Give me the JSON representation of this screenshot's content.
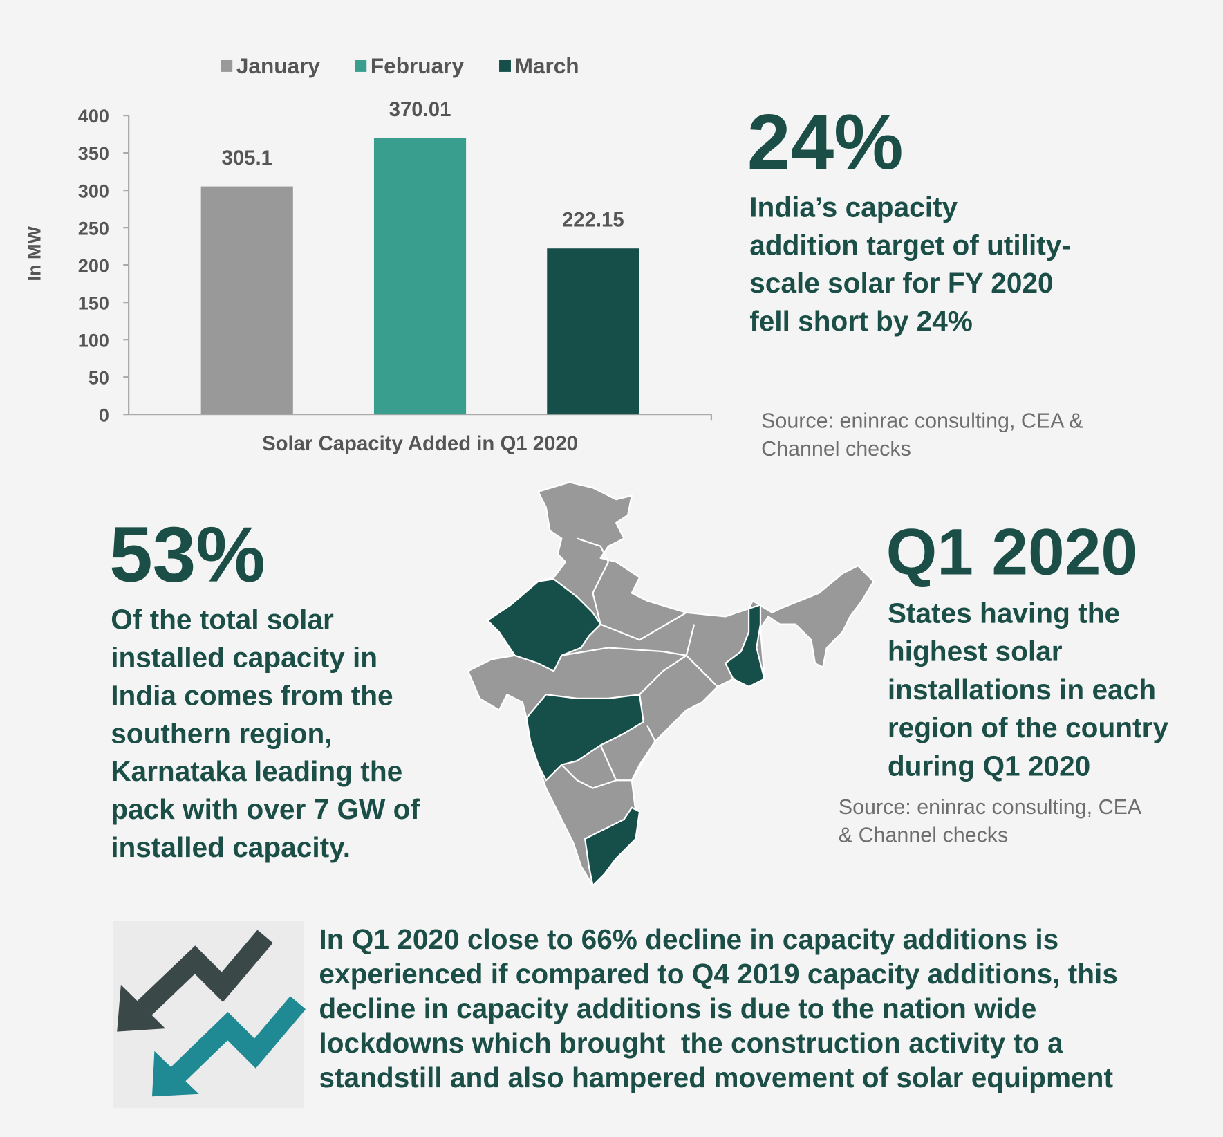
{
  "chart_data": {
    "type": "bar",
    "categories": [
      "Solar Capacity Added in Q1 2020"
    ],
    "ylabel": "In MW",
    "series": [
      {
        "name": "January",
        "color": "#999999",
        "values": [
          305.1
        ]
      },
      {
        "name": "February",
        "color": "#3a9e8f",
        "values": [
          370.01
        ]
      },
      {
        "name": "March",
        "color": "#164f49",
        "values": [
          222.15
        ]
      }
    ],
    "ylim": [
      0,
      400
    ],
    "yticks": [
      0,
      50,
      100,
      150,
      200,
      250,
      300,
      350,
      400
    ],
    "grid": false,
    "legend": "top"
  },
  "highlight_target": {
    "figure": "24%",
    "lines": [
      "India’s capacity",
      "addition target of utility-",
      "scale solar for FY 2020",
      "fell short by 24%"
    ],
    "source": [
      "Source: eninrac consulting, CEA &",
      "Channel checks"
    ]
  },
  "highlight_south": {
    "figure": "53%",
    "lines": [
      "Of the total solar",
      "installed capacity in",
      "India comes from the",
      "southern region,",
      "Karnataka leading the",
      "pack with over 7 GW of",
      "installed capacity."
    ]
  },
  "highlight_states": {
    "figure": "Q1 2020",
    "lines": [
      "States having the",
      "highest solar",
      "installations in each",
      "region of the country",
      "during Q1 2020"
    ],
    "source": [
      "Source: eninrac consulting, CEA",
      "& Channel checks"
    ]
  },
  "decline_note": {
    "lines": [
      "In Q1 2020 close to 66% decline in capacity additions is",
      "experienced if compared to Q4 2019 capacity additions, this",
      "decline in capacity additions is due to the nation wide",
      "lockdowns which brought  the construction activity to a",
      "standstill and also hampered movement of solar equipment"
    ]
  }
}
